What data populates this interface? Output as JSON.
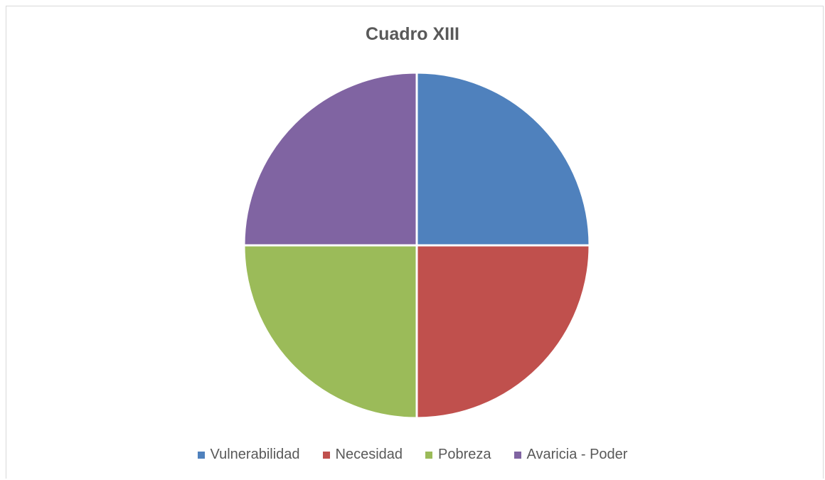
{
  "chart_data": {
    "type": "pie",
    "title": "Cuadro XIII",
    "categories": [
      "Vulnerabilidad",
      "Necesidad",
      "Pobreza",
      "Avaricia - Poder"
    ],
    "values": [
      25,
      25,
      25,
      25
    ],
    "colors": [
      "#4f81bd",
      "#c0504d",
      "#9bbb59",
      "#8064a2"
    ],
    "legend_position": "bottom"
  }
}
